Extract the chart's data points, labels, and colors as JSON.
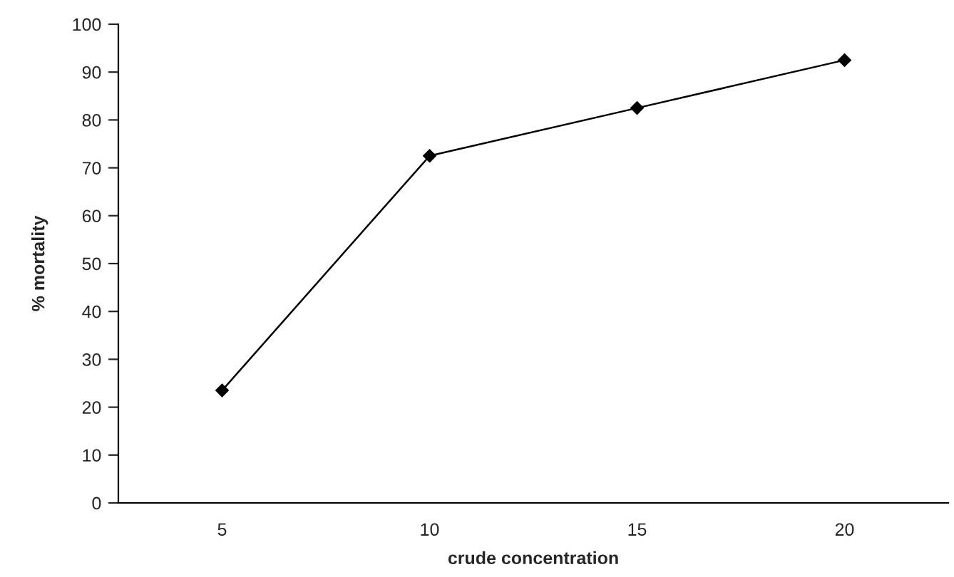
{
  "chart_data": {
    "type": "line",
    "xlabel": "crude concentration",
    "ylabel": "% mortality",
    "categories": [
      "5",
      "10",
      "15",
      "20"
    ],
    "series": [
      {
        "color": "#000000",
        "values": [
          23.5,
          72.5,
          82.5,
          92.5
        ]
      }
    ],
    "ylim": [
      0,
      100
    ],
    "yticks": [
      0,
      10,
      20,
      30,
      40,
      50,
      60,
      70,
      80,
      90,
      100
    ],
    "marker": "diamond",
    "line_style": "solid",
    "grid": false,
    "legend": false
  }
}
